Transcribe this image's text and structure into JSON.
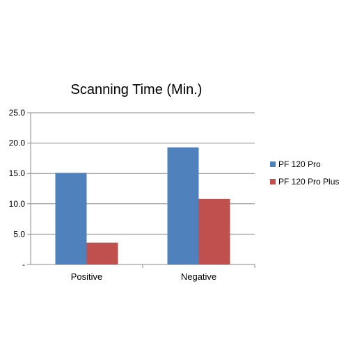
{
  "chart_data": {
    "type": "bar",
    "title": "Scanning Time (Min.)",
    "xlabel": "",
    "ylabel": "",
    "categories": [
      "Positive",
      "Negative"
    ],
    "series": [
      {
        "name": "PF 120 Pro",
        "color": "#4f81bd",
        "values": [
          15.1,
          19.3
        ]
      },
      {
        "name": "PF 120 Pro Plus",
        "color": "#c0504d",
        "values": [
          3.6,
          10.8
        ]
      }
    ],
    "ylim": [
      0,
      25
    ],
    "yticks": [
      0,
      5,
      10,
      15,
      20,
      25
    ],
    "ytick_labels": [
      "-",
      "5.0",
      "10.0",
      "15.0",
      "20.0",
      "25.0"
    ],
    "grid": true,
    "legend_position": "right"
  }
}
